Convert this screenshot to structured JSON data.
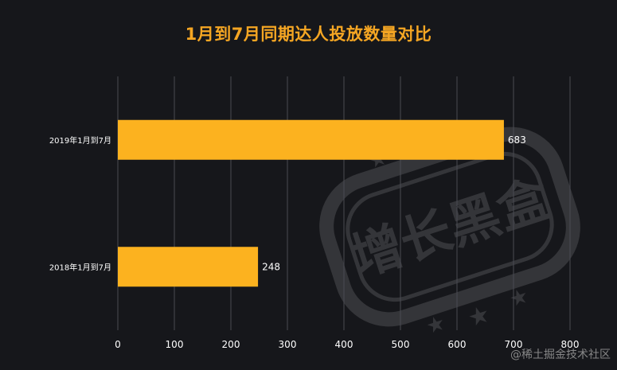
{
  "chart_data": {
    "type": "bar",
    "orientation": "horizontal",
    "title": "1月到7月同期达人投放数量对比",
    "categories": [
      "2019年1月到7月",
      "2018年1月到7月"
    ],
    "values": [
      683,
      248
    ],
    "data_labels": [
      "683",
      "248"
    ],
    "xlim": [
      0,
      800
    ],
    "xticks": [
      0,
      100,
      200,
      300,
      400,
      500,
      600,
      700,
      800
    ],
    "xlabel": "",
    "ylabel": "",
    "grid": true,
    "bar_color": "#fcb21f"
  },
  "watermark": {
    "stamp_text": "增长黑盒",
    "credit": "@稀土掘金技术社区"
  },
  "colors": {
    "background": "#16171b",
    "title": "#f5a623",
    "axis_text": "#ffffff",
    "grid": "#4a4b52"
  }
}
